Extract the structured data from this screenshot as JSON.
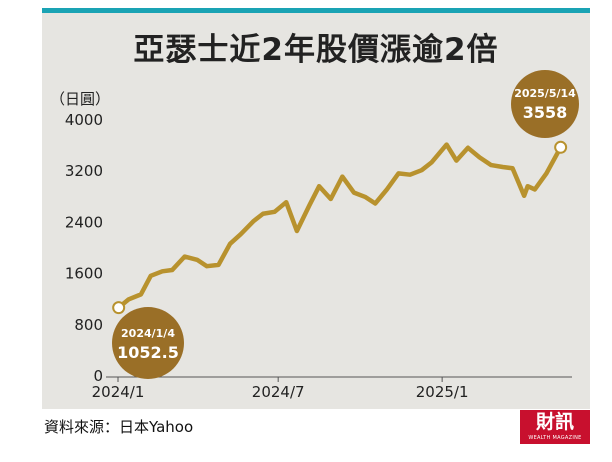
{
  "title": "亞瑟士近2年股價漲逾2倍",
  "source": "資料來源：日本Yahoo",
  "logo": {
    "main": "財訊",
    "sub": "WEALTH MAGAZINE"
  },
  "colors": {
    "line": "#b8922e",
    "bubble": "#9a6f27",
    "panel": "#e6e5e1",
    "accent_bar": "#1aa3b4"
  },
  "chart_data": {
    "type": "line",
    "title": "亞瑟士近2年股價漲逾2倍",
    "ylabel": "（日圓）",
    "ylim": [
      0,
      4000
    ],
    "y_ticks": [
      "0",
      "800",
      "1600",
      "2400",
      "3200",
      "4000"
    ],
    "x_ticks": [
      "2024/1",
      "2024/7",
      "2025/1"
    ],
    "x": [
      "2024-01-04",
      "2024-01-15",
      "2024-01-29",
      "2024-02-09",
      "2024-02-22",
      "2024-03-04",
      "2024-03-18",
      "2024-04-01",
      "2024-04-12",
      "2024-04-25",
      "2024-05-08",
      "2024-05-20",
      "2024-06-03",
      "2024-06-14",
      "2024-06-27",
      "2024-07-10",
      "2024-07-22",
      "2024-08-05",
      "2024-08-16",
      "2024-08-29",
      "2024-09-11",
      "2024-09-24",
      "2024-10-07",
      "2024-10-18",
      "2024-10-31",
      "2024-11-13",
      "2024-11-26",
      "2024-12-09",
      "2024-12-20",
      "2025-01-06",
      "2025-01-17",
      "2025-01-30",
      "2025-02-12",
      "2025-02-25",
      "2025-03-10",
      "2025-03-21",
      "2025-04-03",
      "2025-04-07",
      "2025-04-15",
      "2025-04-28",
      "2025-05-14"
    ],
    "series": [
      {
        "values": [
          1052.5,
          1180,
          1260,
          1550,
          1620,
          1640,
          1850,
          1800,
          1700,
          1720,
          2050,
          2200,
          2400,
          2520,
          2550,
          2700,
          2250,
          2650,
          2950,
          2750,
          3100,
          2850,
          2780,
          2680,
          2900,
          3150,
          3130,
          3200,
          3320,
          3600,
          3350,
          3550,
          3400,
          3280,
          3250,
          3230,
          2800,
          2950,
          2900,
          3150,
          3558
        ]
      }
    ],
    "annotations": [
      {
        "date": "2024/1/4",
        "value": "1052.5"
      },
      {
        "date": "2025/5/14",
        "value": "3558"
      }
    ]
  }
}
